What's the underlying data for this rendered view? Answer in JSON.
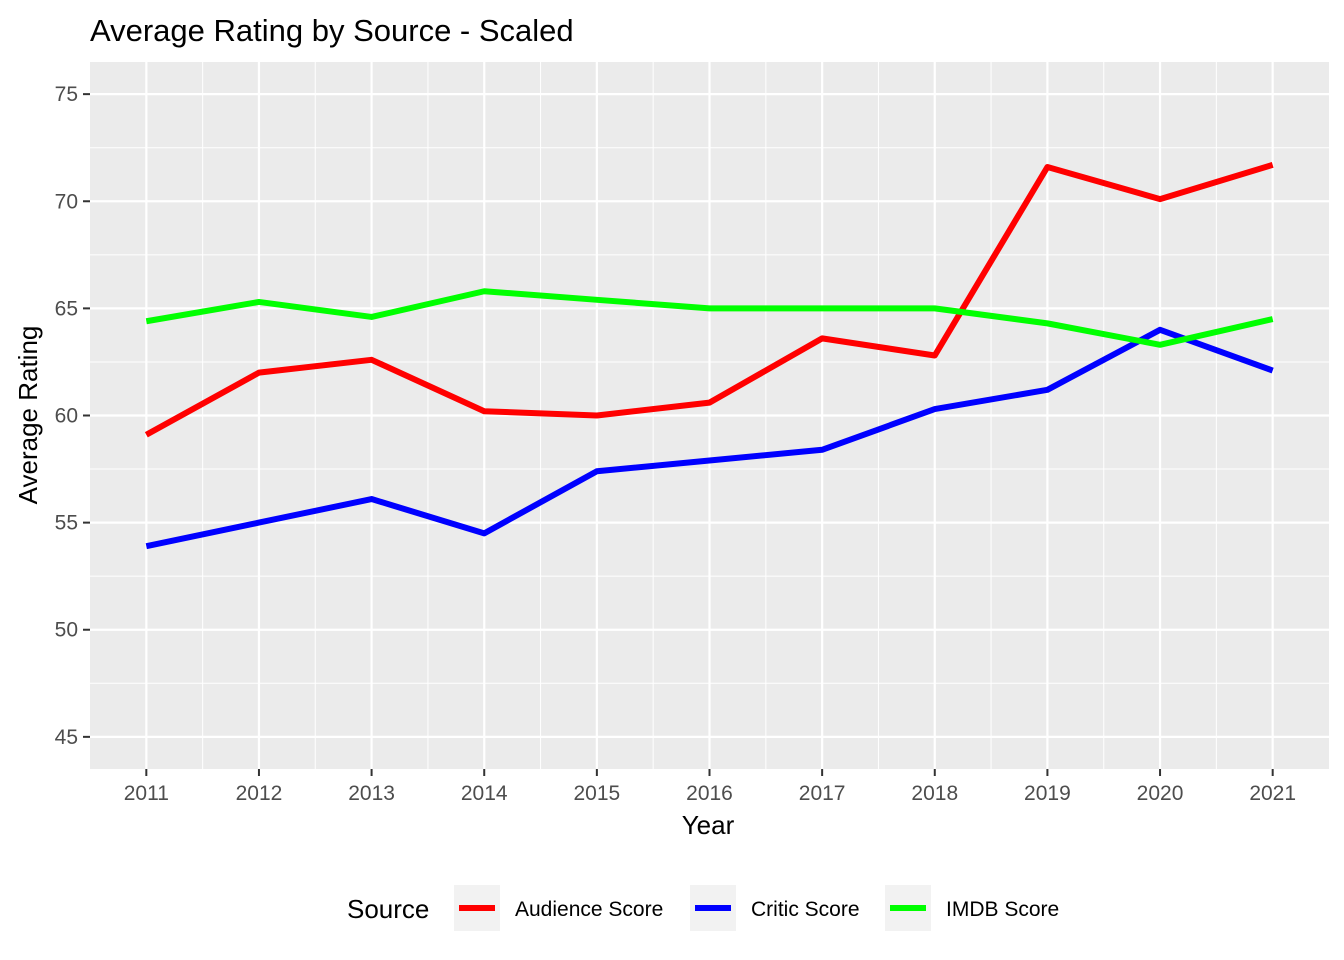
{
  "chart_data": {
    "type": "line",
    "title": "Average Rating by Source - Scaled",
    "xlabel": "Year",
    "ylabel": "Average Rating",
    "x": [
      2011,
      2012,
      2013,
      2014,
      2015,
      2016,
      2017,
      2018,
      2019,
      2020,
      2021
    ],
    "x_tick_labels": [
      "2011",
      "2012",
      "2013",
      "2014",
      "2015",
      "2016",
      "2017",
      "2018",
      "2019",
      "2020",
      "2021"
    ],
    "y_ticks": [
      45,
      50,
      55,
      60,
      65,
      70,
      75
    ],
    "y_tick_labels": [
      "45",
      "50",
      "55",
      "60",
      "65",
      "70",
      "75"
    ],
    "xlim": [
      2010.5,
      2021.5
    ],
    "ylim": [
      43.5,
      76.5
    ],
    "grid": true,
    "legend_position": "bottom",
    "legend_title": "Source",
    "series": [
      {
        "name": "Audience Score",
        "color": "#ff0000",
        "values": [
          59.1,
          62.0,
          62.6,
          60.2,
          60.0,
          60.6,
          63.6,
          62.8,
          71.6,
          70.1,
          71.7
        ]
      },
      {
        "name": "Critic Score",
        "color": "#0000ff",
        "values": [
          53.9,
          55.0,
          56.1,
          54.5,
          57.4,
          57.9,
          58.4,
          60.3,
          61.2,
          64.0,
          62.1
        ]
      },
      {
        "name": "IMDB Score",
        "color": "#00ff00",
        "values": [
          64.4,
          65.3,
          64.6,
          65.8,
          65.4,
          65.0,
          65.0,
          65.0,
          64.3,
          63.3,
          64.5
        ]
      }
    ]
  }
}
